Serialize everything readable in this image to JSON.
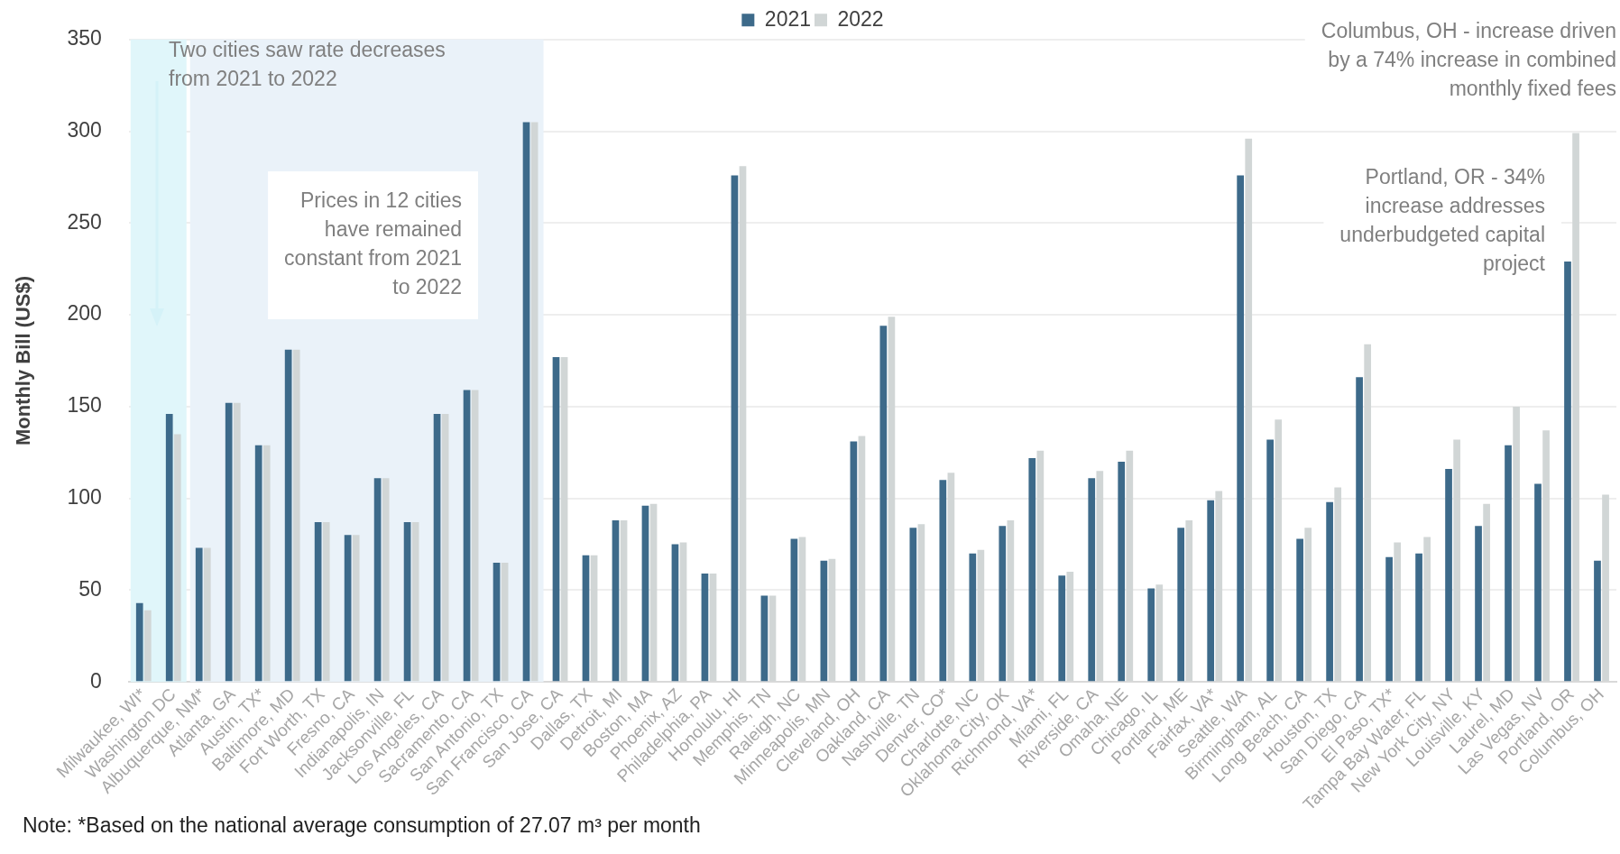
{
  "chart_data": {
    "type": "bar",
    "ylabel": "Monthly Bill (US$)",
    "categories": [
      "Milwaukee, WI*",
      "Washington DC",
      "Albuquerque, NM*",
      "Atlanta, GA",
      "Austin, TX*",
      "Baltimore, MD",
      "Fort Worth, TX",
      "Fresno, CA",
      "Indianapolis, IN",
      "Jacksonville, FL",
      "Los Angeles, CA",
      "Sacramento, CA",
      "San Antonio, TX",
      "San Francisco, CA",
      "San Jose, CA",
      "Dallas, TX",
      "Detroit, MI",
      "Boston, MA",
      "Phoenix, AZ",
      "Philadelphia, PA",
      "Honolulu, HI",
      "Memphis, TN",
      "Raleigh, NC",
      "Minneapolis, MN",
      "Cleveland, OH",
      "Oakland, CA",
      "Nashville, TN",
      "Denver, CO*",
      "Charlotte, NC",
      "Oklahoma City, OK",
      "Richmond, VA*",
      "Miami, FL",
      "Riverside, CA",
      "Omaha, NE",
      "Chicago, IL",
      "Portland, ME",
      "Fairfax, VA*",
      "Seattle, WA",
      "Birmingham, AL",
      "Long Beach, CA",
      "Houston, TX",
      "San Diego, CA",
      "El Paso, TX*",
      "Tampa Bay Water, FL",
      "New York City, NY",
      "Louisville, KY",
      "Laurel, MD",
      "Las Vegas, NV",
      "Portland, OR",
      "Columbus, OH"
    ],
    "series": [
      {
        "name": "2021",
        "color": "#3d6a8a",
        "values": [
          43,
          146,
          73,
          152,
          129,
          181,
          87,
          80,
          111,
          87,
          146,
          159,
          65,
          305,
          177,
          69,
          88,
          96,
          75,
          59,
          276,
          47,
          78,
          66,
          131,
          194,
          84,
          110,
          70,
          85,
          122,
          58,
          111,
          120,
          51,
          84,
          99,
          276,
          132,
          78,
          98,
          166,
          68,
          70,
          116,
          85,
          129,
          108,
          229,
          66
        ]
      },
      {
        "name": "2022",
        "color": "#d1d6d6",
        "values": [
          39,
          135,
          73,
          152,
          129,
          181,
          87,
          80,
          111,
          87,
          146,
          159,
          65,
          305,
          177,
          69,
          88,
          97,
          76,
          59,
          281,
          47,
          79,
          67,
          134,
          199,
          86,
          114,
          72,
          88,
          126,
          60,
          115,
          126,
          53,
          88,
          104,
          296,
          143,
          84,
          106,
          184,
          76,
          79,
          132,
          97,
          150,
          137,
          299,
          102
        ]
      }
    ],
    "ylim": [
      0,
      350
    ],
    "yticks": [
      0,
      50,
      100,
      150,
      200,
      250,
      300,
      350
    ],
    "grid": "y",
    "legend": "top",
    "bands": [
      {
        "axis": "x",
        "from": "Milwaukee, WI*",
        "to": "Washington DC",
        "color": "#e0f6fa"
      },
      {
        "axis": "x",
        "from": "Albuquerque, NM*",
        "to": "San Francisco, CA",
        "color": "#eaf2f9"
      }
    ],
    "annotations": [
      "Two cities saw rate decreases from 2021 to 2022",
      "Prices in 12 cities have remained constant from 2021 to 2022",
      "Columbus, OH - increase driven by a 74% increase in combined monthly fixed fees",
      "Portland, OR - 34% increase addresses underbudgeted capital project",
      "Note: *Based on the national average consumption of 27.07 m³ per month"
    ]
  }
}
